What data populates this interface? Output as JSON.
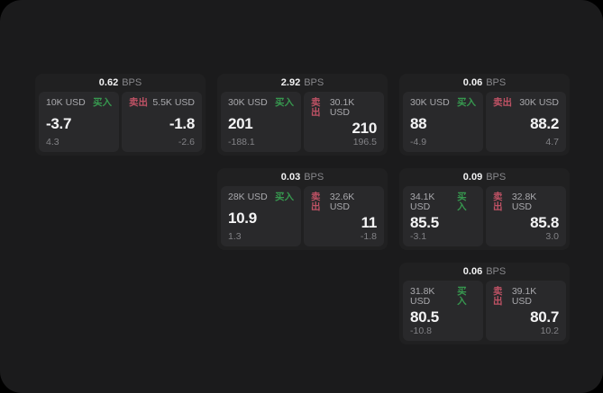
{
  "labels": {
    "bps_unit": "BPS",
    "buy": "买入",
    "sell": "卖出"
  },
  "colors": {
    "background": "#000000",
    "panel": "#1b1b1c",
    "card": "#202021",
    "pane": "#29292b",
    "buy_accent": "#37984f",
    "sell_accent": "#bf5265",
    "primary_text": "#f4f4f5",
    "muted_text": "#87878b"
  },
  "cards": [
    {
      "bps": "0.62",
      "buy": {
        "amount": "10K USD",
        "price": "-3.7",
        "sub": "4.3"
      },
      "sell": {
        "amount": "5.5K USD",
        "price": "-1.8",
        "sub": "-2.6"
      }
    },
    {
      "bps": "2.92",
      "buy": {
        "amount": "30K USD",
        "price": "201",
        "sub": "-188.1"
      },
      "sell": {
        "amount": "30.1K USD",
        "price": "210",
        "sub": "196.5"
      }
    },
    {
      "bps": "0.06",
      "buy": {
        "amount": "30K USD",
        "price": "88",
        "sub": "-4.9"
      },
      "sell": {
        "amount": "30K USD",
        "price": "88.2",
        "sub": "4.7"
      }
    },
    {
      "bps": "0.03",
      "buy": {
        "amount": "28K USD",
        "price": "10.9",
        "sub": "1.3"
      },
      "sell": {
        "amount": "32.6K USD",
        "price": "11",
        "sub": "-1.8"
      }
    },
    {
      "bps": "0.09",
      "buy": {
        "amount": "34.1K USD",
        "price": "85.5",
        "sub": "-3.1"
      },
      "sell": {
        "amount": "32.8K USD",
        "price": "85.8",
        "sub": "3.0"
      }
    },
    {
      "bps": "0.06",
      "buy": {
        "amount": "31.8K USD",
        "price": "80.5",
        "sub": "-10.8"
      },
      "sell": {
        "amount": "39.1K USD",
        "price": "80.7",
        "sub": "10.2"
      }
    }
  ]
}
